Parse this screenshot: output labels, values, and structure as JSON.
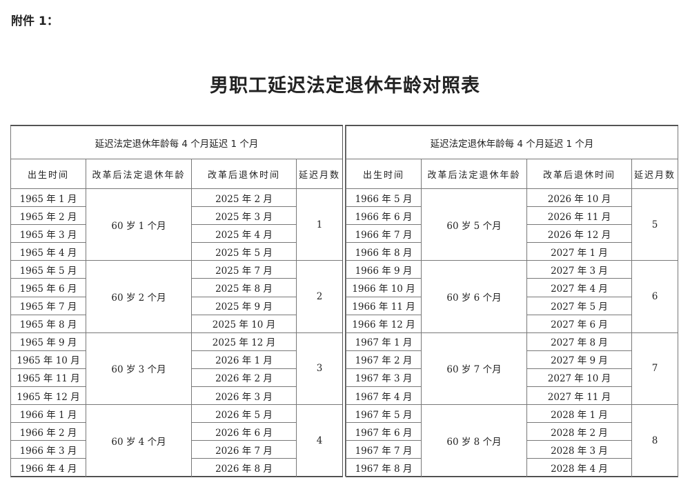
{
  "attachment_label": "附件 1：",
  "title": "男职工延迟法定退休年龄对照表",
  "tables": [
    {
      "heading": "延迟法定退休年龄每 4 个月延迟 1 个月",
      "columns": [
        "出生时间",
        "改革后法定退休年龄",
        "改革后退休时间",
        "延迟月数"
      ],
      "groups": [
        {
          "age": "60 岁 1 个月",
          "delay": "1",
          "rows": [
            [
              "1965 年 1 月",
              "2025 年 2 月"
            ],
            [
              "1965 年 2 月",
              "2025 年 3 月"
            ],
            [
              "1965 年 3 月",
              "2025 年 4 月"
            ],
            [
              "1965 年 4 月",
              "2025 年 5 月"
            ]
          ]
        },
        {
          "age": "60 岁 2 个月",
          "delay": "2",
          "rows": [
            [
              "1965 年 5 月",
              "2025 年 7 月"
            ],
            [
              "1965 年 6 月",
              "2025 年 8 月"
            ],
            [
              "1965 年 7 月",
              "2025 年 9 月"
            ],
            [
              "1965 年 8 月",
              "2025 年 10 月"
            ]
          ]
        },
        {
          "age": "60 岁 3 个月",
          "delay": "3",
          "rows": [
            [
              "1965 年 9 月",
              "2025 年 12 月"
            ],
            [
              "1965 年 10 月",
              "2026 年 1 月"
            ],
            [
              "1965 年 11 月",
              "2026 年 2 月"
            ],
            [
              "1965 年 12 月",
              "2026 年 3 月"
            ]
          ]
        },
        {
          "age": "60 岁 4 个月",
          "delay": "4",
          "rows": [
            [
              "1966 年 1 月",
              "2026 年 5 月"
            ],
            [
              "1966 年 2 月",
              "2026 年 6 月"
            ],
            [
              "1966 年 3 月",
              "2026 年 7 月"
            ],
            [
              "1966 年 4 月",
              "2026 年 8 月"
            ]
          ]
        }
      ]
    },
    {
      "heading": "延迟法定退休年龄每 4 个月延迟 1 个月",
      "columns": [
        "出生时间",
        "改革后法定退休年龄",
        "改革后退休时间",
        "延迟月数"
      ],
      "groups": [
        {
          "age": "60 岁 5 个月",
          "delay": "5",
          "rows": [
            [
              "1966 年 5 月",
              "2026 年 10 月"
            ],
            [
              "1966 年 6 月",
              "2026 年 11 月"
            ],
            [
              "1966 年 7 月",
              "2026 年 12 月"
            ],
            [
              "1966 年 8 月",
              "2027 年 1 月"
            ]
          ]
        },
        {
          "age": "60 岁 6 个月",
          "delay": "6",
          "rows": [
            [
              "1966 年 9 月",
              "2027 年 3 月"
            ],
            [
              "1966 年 10 月",
              "2027 年 4 月"
            ],
            [
              "1966 年 11 月",
              "2027 年 5 月"
            ],
            [
              "1966 年 12 月",
              "2027 年 6 月"
            ]
          ]
        },
        {
          "age": "60 岁 7 个月",
          "delay": "7",
          "rows": [
            [
              "1967 年 1 月",
              "2027 年 8 月"
            ],
            [
              "1967 年 2 月",
              "2027 年 9 月"
            ],
            [
              "1967 年 3 月",
              "2027 年 10 月"
            ],
            [
              "1967 年 4 月",
              "2027 年 11 月"
            ]
          ]
        },
        {
          "age": "60 岁 8 个月",
          "delay": "8",
          "rows": [
            [
              "1967 年 5 月",
              "2028 年 1 月"
            ],
            [
              "1967 年 6 月",
              "2028 年 2 月"
            ],
            [
              "1967 年 7 月",
              "2028 年 3 月"
            ],
            [
              "1967 年 8 月",
              "2028 年 4 月"
            ]
          ]
        }
      ]
    }
  ]
}
